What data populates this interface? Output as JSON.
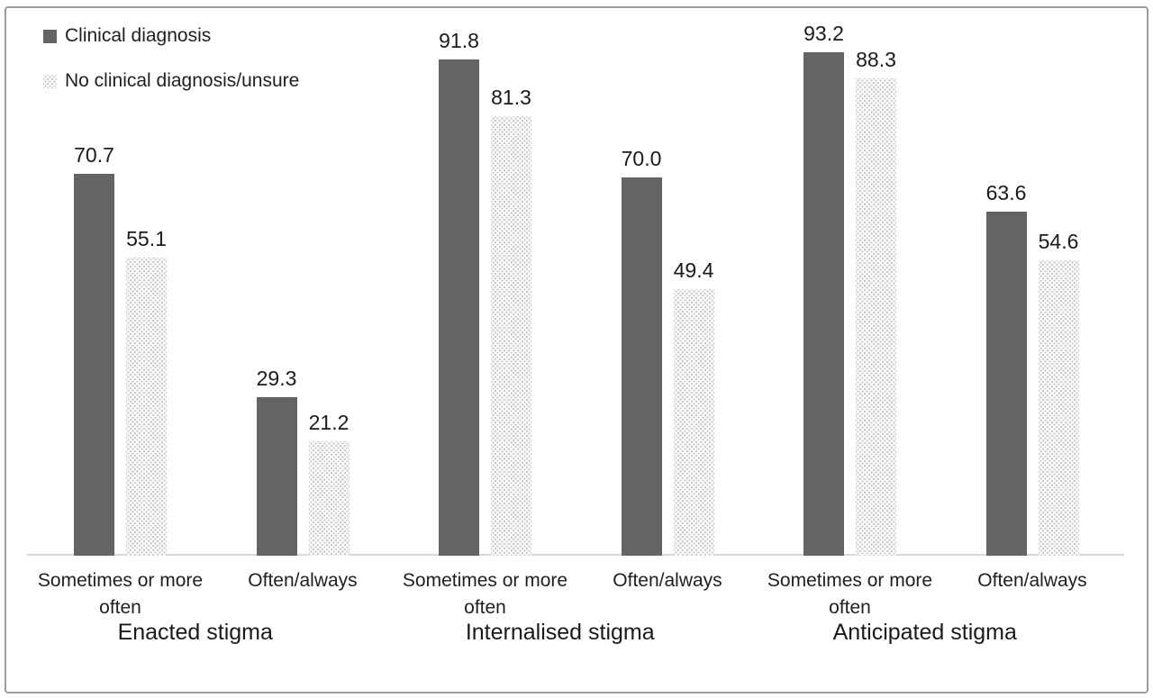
{
  "colors": {
    "bar_dark": "#646464",
    "bar_light_dot": "#c9c9c9",
    "bar_light_bg": "#fbfbfb",
    "axis_line": "#d9d9d9",
    "frame_border": "#9c9c9c",
    "text": "#1f1f1f"
  },
  "chart_data": {
    "type": "bar",
    "title": "",
    "xlabel": "",
    "ylabel": "",
    "ylim": [
      0,
      100
    ],
    "grid": false,
    "legend_position": "top-left",
    "value_labels_shown": true,
    "series": [
      {
        "name": "Clinical diagnosis",
        "style": "solid",
        "color": "#646464"
      },
      {
        "name": "No clinical diagnosis/unsure",
        "style": "dotted",
        "color": "#e3e3e3"
      }
    ],
    "groups": [
      {
        "label": "Enacted stigma",
        "categories": [
          {
            "label": "Sometimes or more often",
            "values": [
              70.7,
              55.1
            ],
            "value_labels": [
              "70.7",
              "55.1"
            ]
          },
          {
            "label": "Often/always",
            "values": [
              29.3,
              21.2
            ],
            "value_labels": [
              "29.3",
              "21.2"
            ]
          }
        ]
      },
      {
        "label": "Internalised stigma",
        "categories": [
          {
            "label": "Sometimes or more often",
            "values": [
              91.8,
              81.3
            ],
            "value_labels": [
              "91.8",
              "81.3"
            ]
          },
          {
            "label": "Often/always",
            "values": [
              70.0,
              49.4
            ],
            "value_labels": [
              "70.0",
              "49.4"
            ]
          }
        ]
      },
      {
        "label": "Anticipated stigma",
        "categories": [
          {
            "label": "Sometimes or more often",
            "values": [
              93.2,
              88.3
            ],
            "value_labels": [
              "93.2",
              "88.3"
            ]
          },
          {
            "label": "Often/always",
            "values": [
              63.6,
              54.6
            ],
            "value_labels": [
              "63.6",
              "54.6"
            ]
          }
        ]
      }
    ]
  }
}
